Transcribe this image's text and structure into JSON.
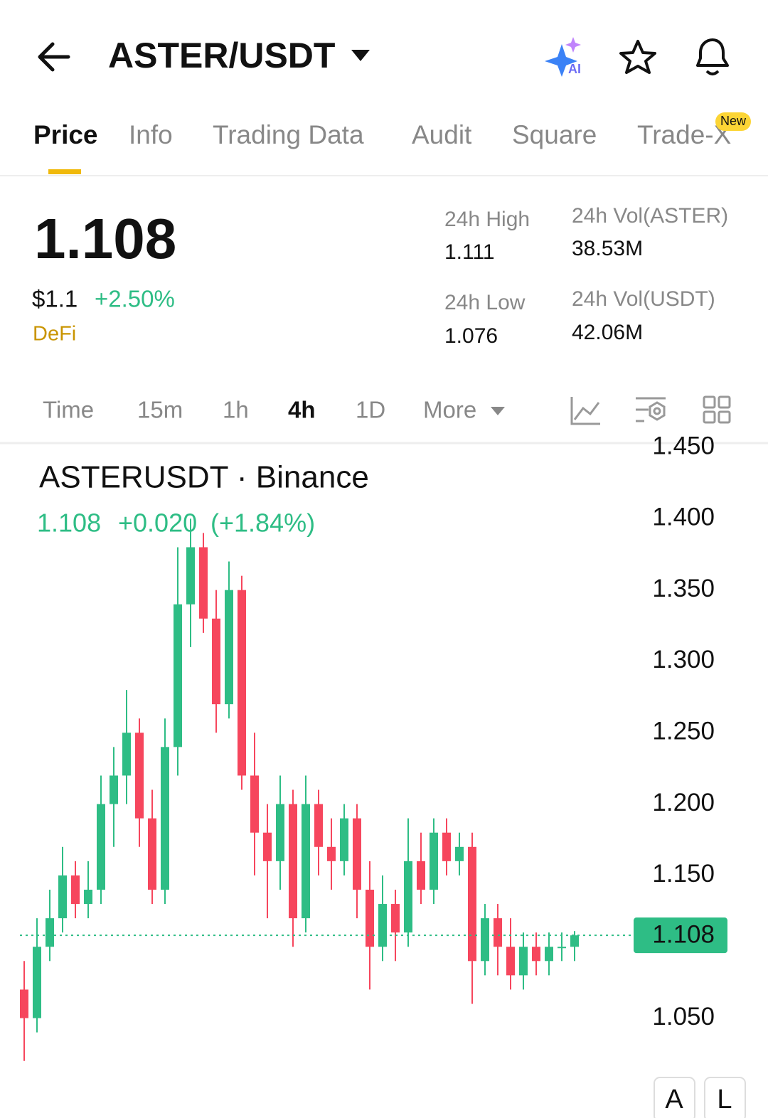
{
  "header": {
    "title": "ASTER/USDT",
    "ai_badge": "AI"
  },
  "tabs": {
    "items": [
      "Price",
      "Info",
      "Trading Data",
      "Audit",
      "Square",
      "Trade-X"
    ],
    "active": 0,
    "new_badge": "New"
  },
  "price": {
    "last": "1.108",
    "usd": "$1.1",
    "change": "+2.50%",
    "sector": "DeFi"
  },
  "stats": [
    {
      "label": "24h High",
      "value": "1.111"
    },
    {
      "label": "24h Vol(ASTER)",
      "value": "38.53M"
    },
    {
      "label": "24h Low",
      "value": "1.076"
    },
    {
      "label": "24h Vol(USDT)",
      "value": "42.06M"
    }
  ],
  "timeframes": {
    "items": [
      "Time",
      "15m",
      "1h",
      "4h",
      "1D",
      "More"
    ],
    "active": 3
  },
  "chart": {
    "type": "candlestick",
    "title": "ASTERUSDT · Binance",
    "quote": "1.108",
    "change": "+0.020",
    "change_pct": "(+1.84%)",
    "up_color": "#2ebd85",
    "down_color": "#f6465d",
    "open": [
      1.07,
      1.05,
      1.1,
      1.12,
      1.15,
      1.13,
      1.14,
      1.2,
      1.22,
      1.25,
      1.19,
      1.14,
      1.24,
      1.34,
      1.38,
      1.33,
      1.27,
      1.35,
      1.22,
      1.18,
      1.16,
      1.2,
      1.12,
      1.2,
      1.17,
      1.16,
      1.19,
      1.14,
      1.1,
      1.13,
      1.11,
      1.16,
      1.14,
      1.18,
      1.16,
      1.17,
      1.09,
      1.12,
      1.1,
      1.08,
      1.1,
      1.09,
      1.1,
      1.1
    ],
    "high": [
      1.09,
      1.12,
      1.14,
      1.17,
      1.16,
      1.16,
      1.22,
      1.24,
      1.28,
      1.26,
      1.21,
      1.26,
      1.38,
      1.4,
      1.39,
      1.35,
      1.37,
      1.36,
      1.25,
      1.2,
      1.22,
      1.21,
      1.22,
      1.21,
      1.19,
      1.2,
      1.2,
      1.16,
      1.15,
      1.14,
      1.19,
      1.18,
      1.19,
      1.19,
      1.18,
      1.18,
      1.13,
      1.13,
      1.12,
      1.11,
      1.11,
      1.11,
      1.11,
      1.111
    ],
    "low": [
      1.02,
      1.04,
      1.09,
      1.11,
      1.12,
      1.12,
      1.13,
      1.17,
      1.2,
      1.17,
      1.13,
      1.13,
      1.22,
      1.31,
      1.32,
      1.25,
      1.26,
      1.21,
      1.15,
      1.12,
      1.14,
      1.1,
      1.11,
      1.15,
      1.14,
      1.15,
      1.12,
      1.07,
      1.09,
      1.09,
      1.1,
      1.13,
      1.13,
      1.15,
      1.15,
      1.06,
      1.08,
      1.08,
      1.07,
      1.07,
      1.08,
      1.08,
      1.09,
      1.09
    ],
    "close": [
      1.05,
      1.1,
      1.12,
      1.15,
      1.13,
      1.14,
      1.2,
      1.22,
      1.25,
      1.19,
      1.14,
      1.24,
      1.34,
      1.38,
      1.33,
      1.27,
      1.35,
      1.22,
      1.18,
      1.16,
      1.2,
      1.12,
      1.2,
      1.17,
      1.16,
      1.19,
      1.14,
      1.1,
      1.13,
      1.11,
      1.16,
      1.14,
      1.18,
      1.16,
      1.17,
      1.09,
      1.12,
      1.1,
      1.08,
      1.1,
      1.09,
      1.1,
      1.1,
      1.108
    ],
    "ylim": [
      0.98,
      1.452
    ],
    "yticks": [
      {
        "value": 1.45,
        "label": "1.450"
      },
      {
        "value": 1.4,
        "label": "1.400"
      },
      {
        "value": 1.35,
        "label": "1.350"
      },
      {
        "value": 1.3,
        "label": "1.300"
      },
      {
        "value": 1.25,
        "label": "1.250"
      },
      {
        "value": 1.2,
        "label": "1.200"
      },
      {
        "value": 1.15,
        "label": "1.150"
      },
      {
        "value": 1.05,
        "label": "1.050"
      }
    ],
    "current_price": {
      "value": 1.108,
      "label": "1.108"
    }
  },
  "chart_buttons": [
    "A",
    "L"
  ]
}
